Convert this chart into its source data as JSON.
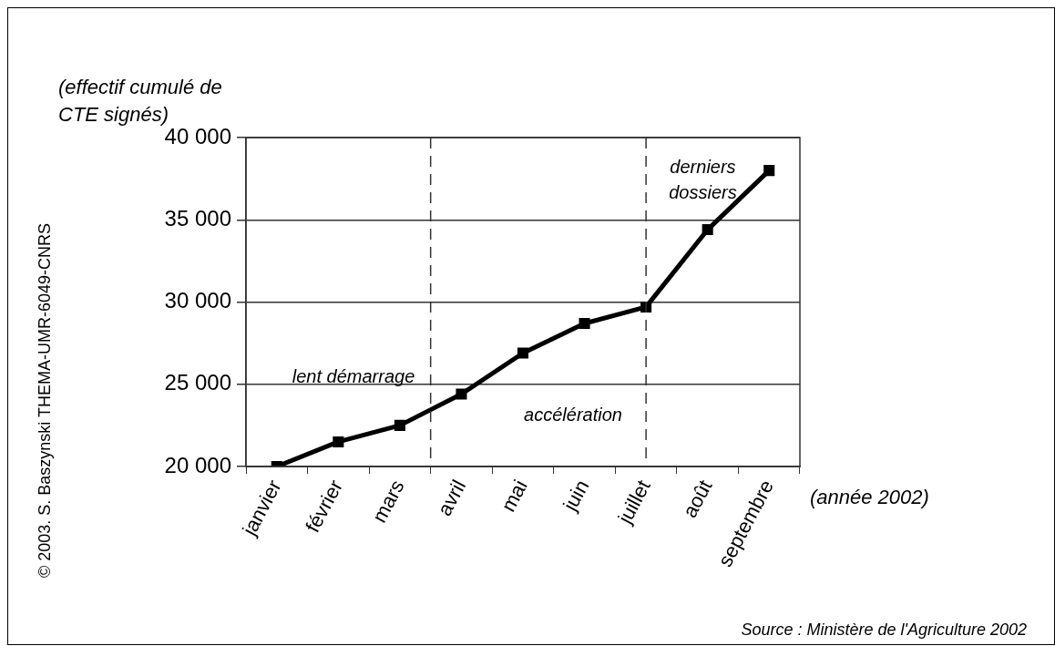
{
  "chart_data": {
    "type": "line",
    "ylabel": "(effectif cumulé de CTE signés)",
    "xlabel": "(année 2002)",
    "categories": [
      "janvier",
      "février",
      "mars",
      "avril",
      "mai",
      "juin",
      "juillet",
      "août",
      "septembre"
    ],
    "ylim": [
      20000,
      40000
    ],
    "yticks": [
      {
        "value": 20000,
        "label": "20 000"
      },
      {
        "value": 25000,
        "label": "25 000"
      },
      {
        "value": 30000,
        "label": "30 000"
      },
      {
        "value": 35000,
        "label": "35 000"
      },
      {
        "value": 40000,
        "label": "40 000"
      }
    ],
    "series": [
      {
        "color": "#000000",
        "values": [
          20000,
          21500,
          22500,
          24400,
          26900,
          28700,
          29700,
          34400,
          38000
        ]
      }
    ],
    "ref_lines": [
      {
        "axis": "x",
        "value": "juillet",
        "line_style": "dashed",
        "color": "#333333"
      }
    ],
    "annotations": [
      "lent démarrage",
      "accélération",
      "derniers dossiers",
      "Source : Ministère de l'Agriculture 2002",
      "© 2003. S. Baszynski THEMA-UMR-6049-CNRS"
    ],
    "grid": "y",
    "marker": "square",
    "line_style": "solid",
    "legend": false
  }
}
